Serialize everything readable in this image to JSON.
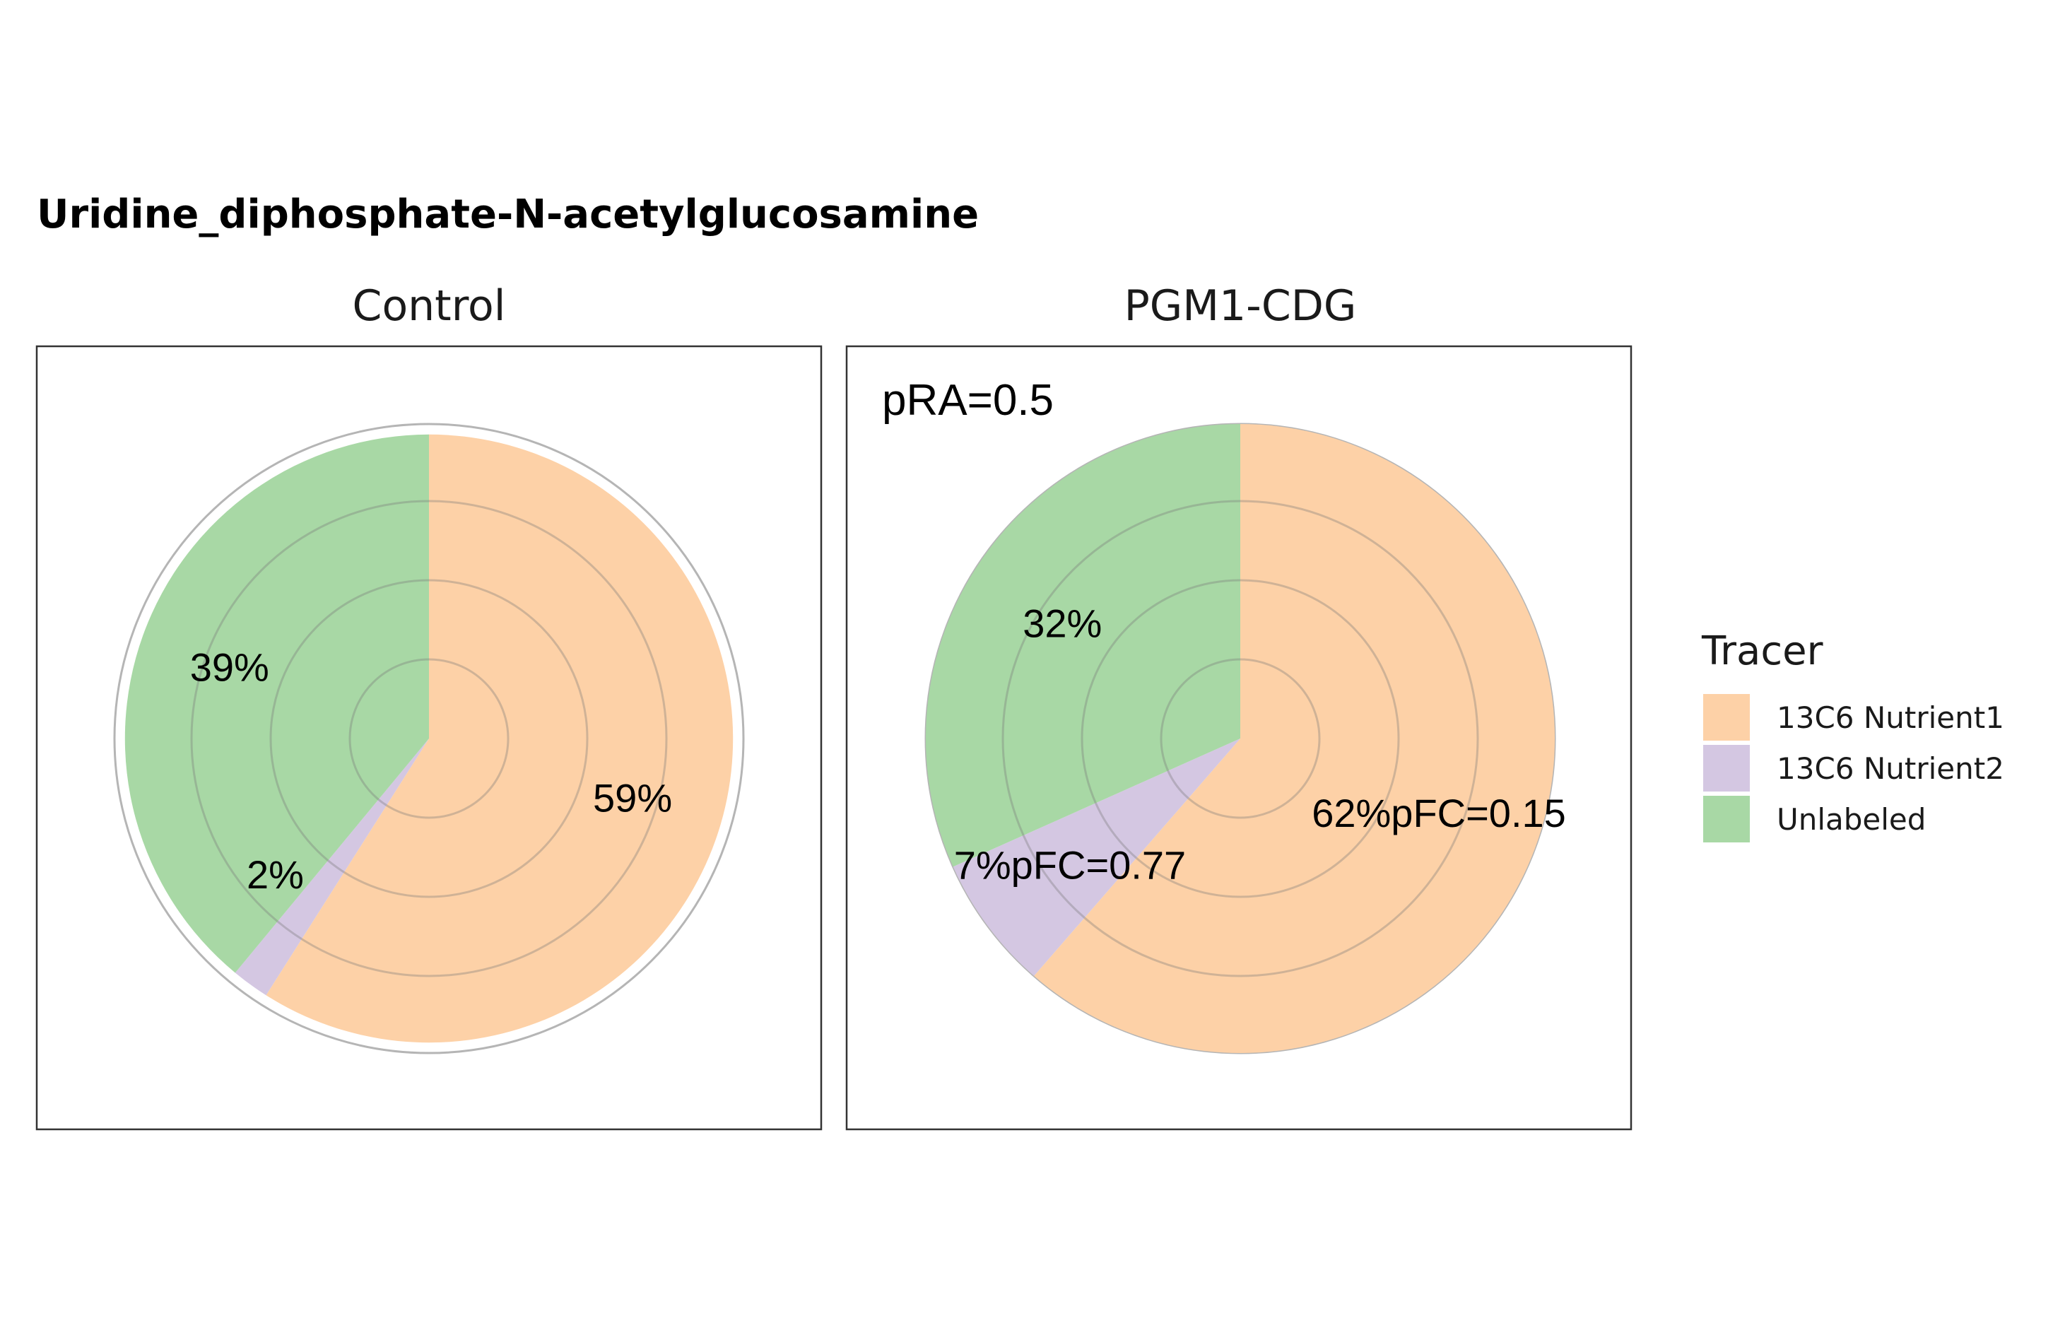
{
  "chart_data": {
    "type": "pie",
    "title": "Uridine_diphosphate-N-acetylglucosamine",
    "colors": {
      "13C6 Nutrient1": "#fdd1a7",
      "13C6 Nutrient2": "#d4c7e2",
      "Unlabeled": "#a8d8a5"
    },
    "legend": {
      "title": "Tracer",
      "position": "right",
      "entries": [
        "13C6 Nutrient1",
        "13C6 Nutrient2",
        "Unlabeled"
      ]
    },
    "panels": [
      {
        "name": "Control",
        "annotation": "",
        "relative_abundance": 0.5,
        "slices": [
          {
            "series": "13C6 Nutrient1",
            "value": 59,
            "label": "59%"
          },
          {
            "series": "13C6 Nutrient2",
            "value": 2,
            "label": "2%"
          },
          {
            "series": "Unlabeled",
            "value": 39,
            "label": "39%"
          }
        ]
      },
      {
        "name": "PGM1-CDG",
        "annotation": "pRA=0.5",
        "relative_abundance": 0.535,
        "slices": [
          {
            "series": "13C6 Nutrient1",
            "value": 62,
            "label": "62%pFC=0.15"
          },
          {
            "series": "13C6 Nutrient2",
            "value": 7,
            "label": "7%pFC=0.77"
          },
          {
            "series": "Unlabeled",
            "value": 32,
            "label": "32%"
          }
        ]
      }
    ]
  }
}
